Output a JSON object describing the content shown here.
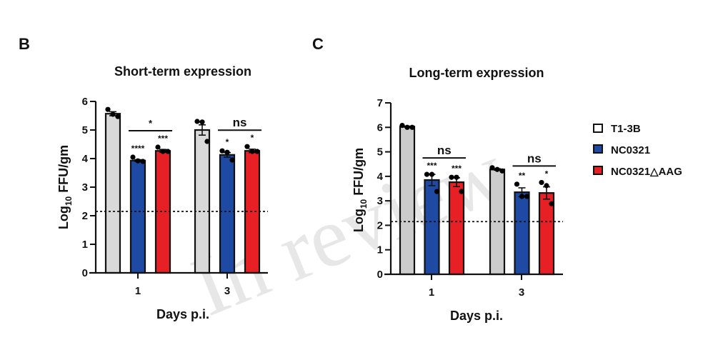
{
  "legend": {
    "items": [
      {
        "label": "T1-3B",
        "color": "#ffffff"
      },
      {
        "label": "NC0321",
        "color": "#1f4aa3"
      },
      {
        "label": "NC0321△AAG",
        "color": "#e62024"
      }
    ]
  },
  "watermark": "In review",
  "chart_data": [
    {
      "panel_label": "B",
      "type": "bar",
      "title": "Short-term expression",
      "xlabel": "Days p.i.",
      "ylabel": "Log10 FFU/gm",
      "ylabel_main": "Log",
      "ylabel_sub": "10",
      "ylabel_rest": " FFU/gm",
      "ylim": [
        0,
        6
      ],
      "yticks": [
        0,
        1,
        2,
        3,
        4,
        5,
        6
      ],
      "categories": [
        "1",
        "3"
      ],
      "detection_limit": 2.15,
      "series": [
        {
          "name": "T1-3B",
          "color": "#d9d9d9",
          "values": [
            5.57,
            5.0
          ],
          "sem": [
            0.07,
            0.18
          ],
          "points": [
            [
              5.72,
              5.55,
              5.47
            ],
            [
              5.3,
              5.28,
              4.6
            ]
          ],
          "sig": [
            "",
            ""
          ]
        },
        {
          "name": "NC0321",
          "color": "#1f4aa3",
          "values": [
            3.93,
            4.13
          ],
          "sem": [
            0.03,
            0.08
          ],
          "points": [
            [
              4.05,
              3.92,
              3.9
            ],
            [
              4.27,
              4.22,
              3.95
            ]
          ],
          "sig": [
            "****",
            "*"
          ]
        },
        {
          "name": "NC0321△AAG",
          "color": "#e62024",
          "values": [
            4.27,
            4.27
          ],
          "sem": [
            0.05,
            0.06
          ],
          "points": [
            [
              4.4,
              4.25,
              4.25
            ],
            [
              4.42,
              4.25,
              4.25
            ]
          ],
          "sig": [
            "***",
            "*"
          ]
        }
      ],
      "comparisons": [
        {
          "category": "1",
          "label": "*"
        },
        {
          "category": "3",
          "label": "ns"
        }
      ]
    },
    {
      "panel_label": "C",
      "type": "bar",
      "title": "Long-term expression",
      "xlabel": "Days p.i.",
      "ylabel": "Log10 FFU/gm",
      "ylabel_main": "Log",
      "ylabel_sub": "10",
      "ylabel_rest": " FFU/gm",
      "ylim": [
        0,
        7
      ],
      "yticks": [
        0,
        1,
        2,
        3,
        4,
        5,
        6,
        7
      ],
      "categories": [
        "1",
        "3"
      ],
      "detection_limit": 2.15,
      "series": [
        {
          "name": "T1-3B",
          "color": "#cccccc",
          "values": [
            6.03,
            4.28
          ],
          "sem": [
            0.02,
            0.03
          ],
          "points": [
            [
              6.08,
              6.0,
              6.0
            ],
            [
              4.35,
              4.28,
              4.22
            ]
          ],
          "sig": [
            "",
            ""
          ]
        },
        {
          "name": "NC0321",
          "color": "#1f4aa3",
          "values": [
            3.85,
            3.35
          ],
          "sem": [
            0.23,
            0.18
          ],
          "points": [
            [
              4.08,
              4.08,
              3.38
            ],
            [
              3.68,
              3.18,
              3.18
            ]
          ],
          "sig": [
            "***",
            "**"
          ]
        },
        {
          "name": "NC0321△AAG",
          "color": "#e62024",
          "values": [
            3.76,
            3.32
          ],
          "sem": [
            0.18,
            0.25
          ],
          "points": [
            [
              3.96,
              3.96,
              3.38
            ],
            [
              3.75,
              3.62,
              2.88
            ]
          ],
          "sig": [
            "***",
            "*"
          ]
        }
      ],
      "comparisons": [
        {
          "category": "1",
          "label": "ns"
        },
        {
          "category": "3",
          "label": "ns"
        }
      ]
    }
  ]
}
